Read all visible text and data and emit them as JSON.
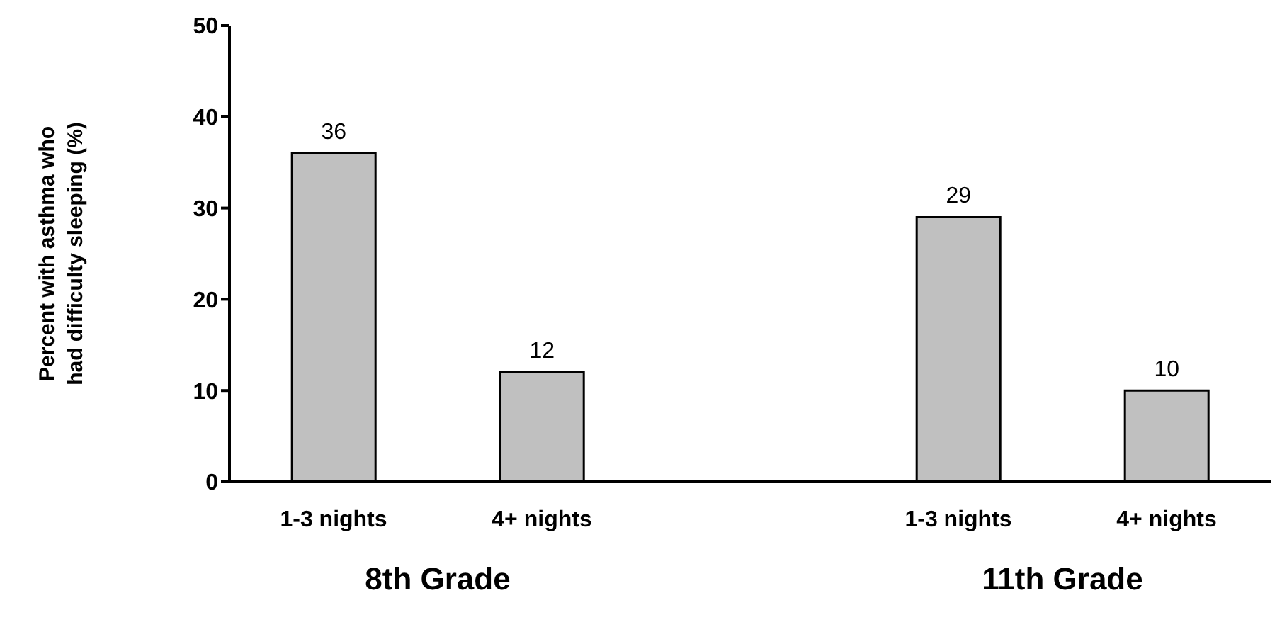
{
  "chart_data": {
    "type": "bar",
    "categories": [
      "1-3 nights",
      "4+ nights",
      null,
      "1-3 nights",
      "4+ nights"
    ],
    "values": [
      36,
      12,
      null,
      29,
      10
    ],
    "color": "#c0c0c0",
    "ylabel": "Percent with asthma who had difficulty sleeping (%)",
    "ylim": [
      0,
      50
    ],
    "yticks": [
      0,
      10,
      20,
      30,
      40,
      50
    ],
    "data_labels": true,
    "grid": false,
    "legend": false,
    "annotations": [
      "8th Grade",
      "11th Grade"
    ]
  }
}
